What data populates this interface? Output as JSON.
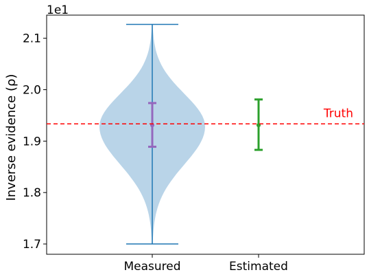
{
  "chart_data": {
    "type": "violin",
    "ylabel": "Inverse evidence (ρ)",
    "y_scale_factor": "1e1",
    "ylim": [
      1.68,
      2.145
    ],
    "yticks": [
      1.7,
      1.8,
      1.9,
      2.0,
      2.1
    ],
    "categories": [
      "Measured",
      "Estimated"
    ],
    "measured": {
      "min": 1.7,
      "max": 2.127,
      "mean": 1.931,
      "error_low": 1.889,
      "error_high": 1.974,
      "violin_fill": "#b9d4e8",
      "line_color": "#1f77b4",
      "error_color": "#9467bd"
    },
    "estimated": {
      "mean": 1.931,
      "error_low": 1.883,
      "error_high": 1.981,
      "color": "#2ca02c"
    },
    "truth": {
      "label": "Truth",
      "value": 1.9335,
      "color": "#ff0000"
    },
    "grid": false
  }
}
